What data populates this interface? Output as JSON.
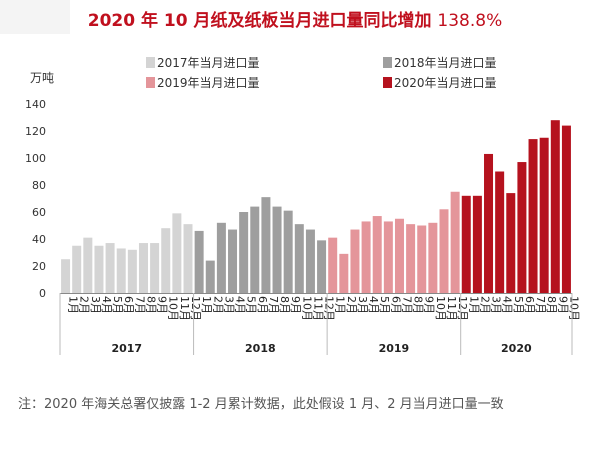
{
  "title": {
    "main": "2020 年 10 月纸及纸板当月进口量同比增加",
    "pct": "138.8%"
  },
  "note": "注：2020 年海关总署仅披露 1-2 月累计数据，此处假设 1 月、2 月当月进口量一致",
  "colors": {
    "title": "#c0101e",
    "s2017": "#d4d4d4",
    "s2018": "#9e9e9e",
    "s2019": "#e4959a",
    "s2020": "#b5121e"
  },
  "chart_data": {
    "type": "bar",
    "ylabel": "万吨",
    "ylim": [
      0,
      140
    ],
    "yticks": [
      0,
      20,
      40,
      60,
      80,
      100,
      120,
      140
    ],
    "grid": false,
    "legend_position": "top",
    "series": [
      {
        "name": "2017年当月进口量",
        "year": "2017",
        "categories": [
          "1月",
          "2月",
          "3月",
          "4月",
          "5月",
          "6月",
          "7月",
          "8月",
          "9月",
          "10月",
          "11月",
          "12月"
        ],
        "values": [
          25,
          35,
          41,
          35,
          37,
          33,
          32,
          37,
          37,
          48,
          59,
          51
        ]
      },
      {
        "name": "2018年当月进口量",
        "year": "2018",
        "categories": [
          "1月",
          "2月",
          "3月",
          "4月",
          "5月",
          "6月",
          "7月",
          "8月",
          "9月",
          "10月",
          "11月",
          "12月"
        ],
        "values": [
          46,
          24,
          52,
          47,
          60,
          64,
          71,
          64,
          61,
          51,
          47,
          39
        ]
      },
      {
        "name": "2019年当月进口量",
        "year": "2019",
        "categories": [
          "1月",
          "2月",
          "3月",
          "4月",
          "5月",
          "6月",
          "7月",
          "8月",
          "9月",
          "10月",
          "11月",
          "12月"
        ],
        "values": [
          41,
          29,
          47,
          53,
          57,
          53,
          55,
          51,
          50,
          52,
          62,
          75
        ]
      },
      {
        "name": "2020年当月进口量",
        "year": "2020",
        "categories": [
          "1月",
          "2月",
          "3月",
          "4月",
          "5月",
          "6月",
          "7月",
          "8月",
          "9月",
          "10月"
        ],
        "values": [
          72,
          72,
          103,
          90,
          74,
          97,
          114,
          115,
          128,
          124
        ]
      }
    ]
  }
}
